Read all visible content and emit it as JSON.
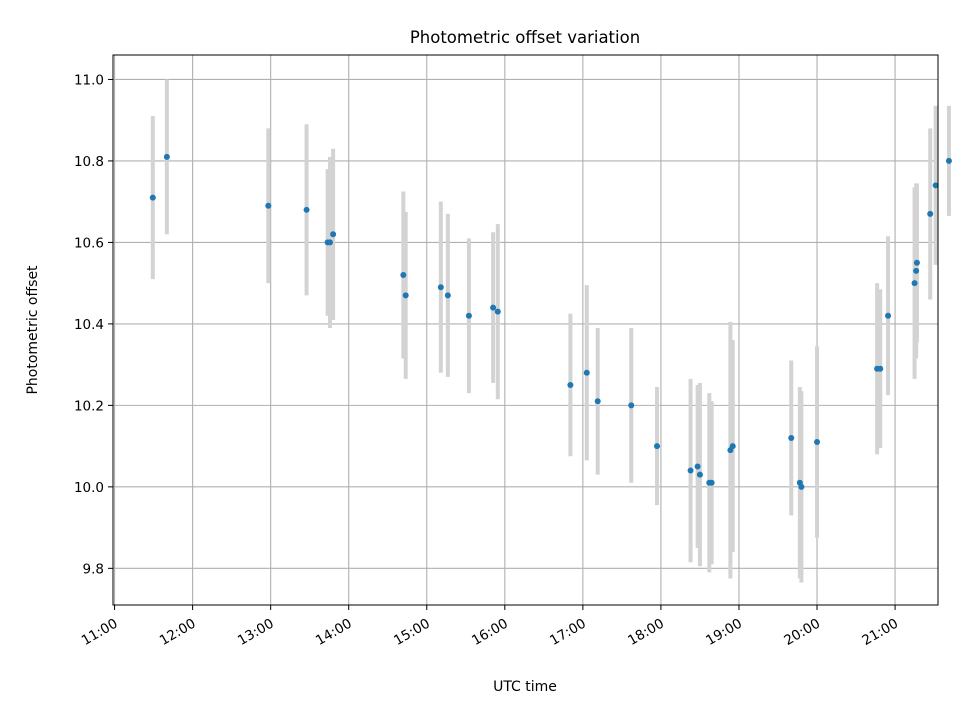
{
  "chart_data": {
    "type": "scatter",
    "title": "Photometric offset variation",
    "xlabel": "UTC time",
    "ylabel": "Photometric offset",
    "x_unit": "hour",
    "xlim": [
      10.98,
      21.55
    ],
    "ylim": [
      9.71,
      11.06
    ],
    "grid": true,
    "xticks": [
      11,
      12,
      13,
      14,
      15,
      16,
      17,
      18,
      19,
      20,
      21
    ],
    "xtick_labels": [
      "11:00",
      "12:00",
      "13:00",
      "14:00",
      "15:00",
      "16:00",
      "17:00",
      "18:00",
      "19:00",
      "20:00",
      "21:00"
    ],
    "yticks": [
      9.8,
      10.0,
      10.2,
      10.4,
      10.6,
      10.8,
      11.0
    ],
    "ytick_labels": [
      "9.8",
      "10.0",
      "10.2",
      "10.4",
      "10.6",
      "10.8",
      "11.0"
    ],
    "colors": {
      "marker": "#1f77b4",
      "errorbar": "#d3d3d3",
      "grid": "#b0b0b0"
    },
    "points": [
      {
        "x": 11.49,
        "y": 10.71,
        "err": 0.2
      },
      {
        "x": 11.67,
        "y": 10.81,
        "err": 0.19
      },
      {
        "x": 12.97,
        "y": 10.69,
        "err": 0.19
      },
      {
        "x": 13.46,
        "y": 10.68,
        "err": 0.21
      },
      {
        "x": 13.73,
        "y": 10.6,
        "err": 0.18
      },
      {
        "x": 13.76,
        "y": 10.6,
        "err": 0.21
      },
      {
        "x": 13.8,
        "y": 10.62,
        "err": 0.21
      },
      {
        "x": 14.7,
        "y": 10.52,
        "err": 0.205
      },
      {
        "x": 14.73,
        "y": 10.47,
        "err": 0.205
      },
      {
        "x": 15.18,
        "y": 10.49,
        "err": 0.21
      },
      {
        "x": 15.27,
        "y": 10.47,
        "err": 0.2
      },
      {
        "x": 15.54,
        "y": 10.42,
        "err": 0.19
      },
      {
        "x": 15.85,
        "y": 10.44,
        "err": 0.185
      },
      {
        "x": 15.91,
        "y": 10.43,
        "err": 0.215
      },
      {
        "x": 16.84,
        "y": 10.25,
        "err": 0.175
      },
      {
        "x": 17.05,
        "y": 10.28,
        "err": 0.215
      },
      {
        "x": 17.19,
        "y": 10.21,
        "err": 0.18
      },
      {
        "x": 17.62,
        "y": 10.2,
        "err": 0.19
      },
      {
        "x": 17.95,
        "y": 10.1,
        "err": 0.145
      },
      {
        "x": 18.38,
        "y": 10.04,
        "err": 0.225
      },
      {
        "x": 18.47,
        "y": 10.05,
        "err": 0.2
      },
      {
        "x": 18.5,
        "y": 10.03,
        "err": 0.225
      },
      {
        "x": 18.62,
        "y": 10.01,
        "err": 0.22
      },
      {
        "x": 18.65,
        "y": 10.01,
        "err": 0.2
      },
      {
        "x": 18.89,
        "y": 10.09,
        "err": 0.315
      },
      {
        "x": 18.92,
        "y": 10.1,
        "err": 0.26
      },
      {
        "x": 19.67,
        "y": 10.12,
        "err": 0.19
      },
      {
        "x": 19.78,
        "y": 10.01,
        "err": 0.235
      },
      {
        "x": 19.8,
        "y": 10.0,
        "err": 0.235
      },
      {
        "x": 20.0,
        "y": 10.11,
        "err": 0.235
      },
      {
        "x": 20.77,
        "y": 10.29,
        "err": 0.21
      },
      {
        "x": 20.81,
        "y": 10.29,
        "err": 0.195
      },
      {
        "x": 20.91,
        "y": 10.42,
        "err": 0.195
      },
      {
        "x": 21.25,
        "y": 10.5,
        "err": 0.235
      },
      {
        "x": 21.27,
        "y": 10.53,
        "err": 0.215
      },
      {
        "x": 21.28,
        "y": 10.55,
        "err": 0.195
      },
      {
        "x": 21.45,
        "y": 10.67,
        "err": 0.21
      },
      {
        "x": 21.52,
        "y": 10.74,
        "err": 0.195
      },
      {
        "x": 21.69,
        "y": 10.8,
        "err": 0.135
      }
    ]
  }
}
